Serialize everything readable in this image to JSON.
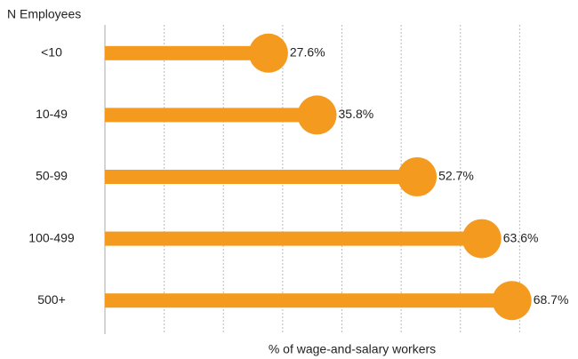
{
  "chart_data": {
    "type": "lollipop",
    "y_axis_label": "N Employees",
    "x_axis_label": "% of wage-and-salary workers",
    "categories": [
      "<10",
      "10-49",
      "50-99",
      "100-499",
      "500+"
    ],
    "values": [
      27.6,
      35.8,
      52.7,
      63.6,
      68.7
    ],
    "value_labels": [
      "27.6%",
      "35.8%",
      "52.7%",
      "63.6%",
      "68.7%"
    ],
    "color": "#f39a1f",
    "xlim": [
      0,
      80
    ],
    "xticks": [
      0,
      10,
      20,
      30,
      40,
      50,
      60,
      70,
      80
    ],
    "grid": true
  }
}
